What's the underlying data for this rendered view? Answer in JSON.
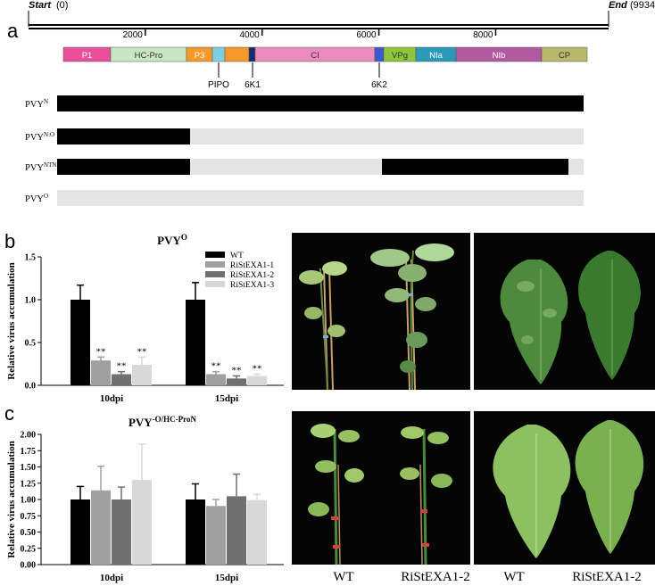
{
  "panel_a": {
    "letter": "a",
    "start_label": "Start",
    "start_value": "(0)",
    "end_label": "End",
    "end_value": "(9934)",
    "ruler_ticks": [
      {
        "label": "2000",
        "pos": 2000
      },
      {
        "label": "4000",
        "pos": 4000
      },
      {
        "label": "6000",
        "pos": 6000
      },
      {
        "label": "8000",
        "pos": 8000
      }
    ],
    "genome_length": 9934,
    "segments": [
      {
        "label": "P1",
        "color": "#e8509a",
        "text_color": "#ffffff"
      },
      {
        "label": "HC-Pro",
        "color": "#c8e6c0",
        "text_color": "#333333"
      },
      {
        "label": "P3",
        "color": "#f59a2a",
        "text_color": "#ffffff"
      },
      {
        "label": "",
        "color": "#7fcfe0",
        "text_color": "#ffffff"
      },
      {
        "label": "",
        "color": "#f59a2a",
        "text_color": "#ffffff"
      },
      {
        "label": "",
        "color": "#1a2a6a",
        "text_color": "#ffffff"
      },
      {
        "label": "CI",
        "color": "#ec8cbc",
        "text_color": "#333333"
      },
      {
        "label": "",
        "color": "#3a5acc",
        "text_color": "#ffffff"
      },
      {
        "label": "VPg",
        "color": "#8cc43a",
        "text_color": "#333333"
      },
      {
        "label": "NIa",
        "color": "#2a9ab8",
        "text_color": "#ffffff"
      },
      {
        "label": "NIb",
        "color": "#b05aa0",
        "text_color": "#ffffff"
      },
      {
        "label": "CP",
        "color": "#b8b86a",
        "text_color": "#333333"
      }
    ],
    "markers": [
      "PIPO",
      "6K1",
      "6K2"
    ],
    "strains": [
      {
        "name": "PVY",
        "sup": "N"
      },
      {
        "name": "PVY",
        "sup": "N:O"
      },
      {
        "name": "PVY",
        "sup": "NTN"
      },
      {
        "name": "PVY",
        "sup": "O"
      }
    ],
    "colors": {
      "n_type": "#000000",
      "o_type": "#e4e4e4"
    }
  },
  "panel_b": {
    "letter": "b",
    "title": "PVY",
    "title_sup": "O",
    "legend": [
      "WT",
      "RiStEXA1-1",
      "RiStEXA1-2",
      "RiStEXA1-3"
    ],
    "significance": "**"
  },
  "panel_c": {
    "letter": "c",
    "title": "PVY",
    "title_sup": "-O/HC-ProN"
  },
  "photo_labels": [
    "WT",
    "RiStEXA1-2",
    "WT",
    "RiStEXA1-2"
  ],
  "chart_data": [
    {
      "type": "bar",
      "title": "PVY-O",
      "ylabel": "Relative virus accumulation",
      "categories": [
        "10dpi",
        "15dpi"
      ],
      "ylim": [
        0,
        1.5
      ],
      "yticks": [
        "0.0",
        "0.5",
        "1.0",
        "1.5"
      ],
      "series": [
        {
          "name": "WT",
          "color": "#000000",
          "values": [
            1.0,
            1.0
          ],
          "errors": [
            0.17,
            0.2
          ]
        },
        {
          "name": "RiStEXA1-1",
          "color": "#a0a0a0",
          "values": [
            0.29,
            0.13
          ],
          "errors": [
            0.04,
            0.03
          ]
        },
        {
          "name": "RiStEXA1-2",
          "color": "#707070",
          "values": [
            0.13,
            0.08
          ],
          "errors": [
            0.03,
            0.03
          ]
        },
        {
          "name": "RiStEXA1-3",
          "color": "#d8d8d8",
          "values": [
            0.24,
            0.11
          ],
          "errors": [
            0.09,
            0.02
          ]
        }
      ],
      "annotations": [
        "**",
        "**",
        "**",
        "**",
        "**",
        "**"
      ]
    },
    {
      "type": "bar",
      "title": "PVY-O/HC-ProN",
      "ylabel": "Relative virus accumulation",
      "categories": [
        "10dpi",
        "15dpi"
      ],
      "ylim": [
        0,
        2.0
      ],
      "yticks": [
        "0.00",
        "0.25",
        "0.50",
        "0.75",
        "1.00",
        "1.25",
        "1.50",
        "1.75",
        "2.00"
      ],
      "series": [
        {
          "name": "WT",
          "color": "#000000",
          "values": [
            1.0,
            1.0
          ],
          "errors": [
            0.2,
            0.24
          ]
        },
        {
          "name": "RiStEXA1-1",
          "color": "#a0a0a0",
          "values": [
            1.14,
            0.9
          ],
          "errors": [
            0.37,
            0.1
          ]
        },
        {
          "name": "RiStEXA1-2",
          "color": "#707070",
          "values": [
            1.0,
            1.05
          ],
          "errors": [
            0.19,
            0.34
          ]
        },
        {
          "name": "RiStEXA1-3",
          "color": "#d8d8d8",
          "values": [
            1.3,
            0.99
          ],
          "errors": [
            0.55,
            0.09
          ]
        }
      ]
    }
  ]
}
